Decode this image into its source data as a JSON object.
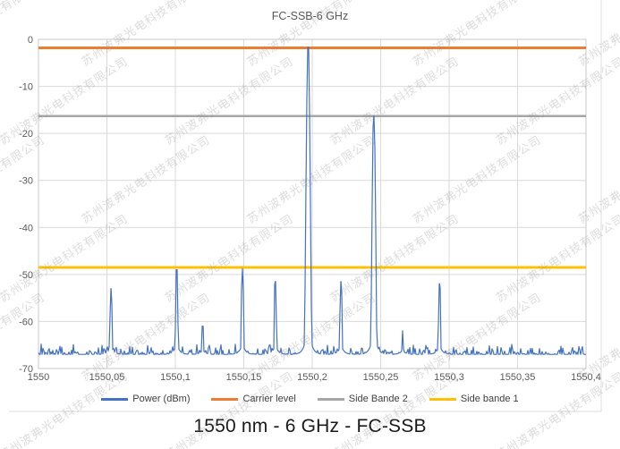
{
  "caption": "1550 nm - 6 GHz - FC-SSB",
  "watermark": {
    "text": "苏州波弗光电科技有限公司",
    "color": "#8f8f8f",
    "opacity": 0.3
  },
  "chart_data": {
    "type": "line",
    "title": "FC-SSB-6 GHz",
    "xlabel": "",
    "ylabel": "",
    "xlim": [
      1550,
      1550.4
    ],
    "ylim": [
      -70,
      0
    ],
    "x_ticks": [
      1550,
      1550.05,
      1550.1,
      1550.15,
      1550.2,
      1550.25,
      1550.3,
      1550.35,
      1550.4
    ],
    "x_tick_labels": [
      "1550",
      "1550,05",
      "1550,1",
      "1550,15",
      "1550,2",
      "1550,25",
      "1550,3",
      "1550,35",
      "1550,4"
    ],
    "y_ticks": [
      0,
      -10,
      -20,
      -30,
      -40,
      -50,
      -60,
      -70
    ],
    "grid": true,
    "legend_position": "bottom",
    "grid_color": "#D9D9D9",
    "series": [
      {
        "name": "Power (dBm)",
        "type": "spectrum",
        "color": "#4472C4",
        "noise_floor_dbm": -67,
        "noise_amplitude_db": 2.3,
        "noise_seed": 7,
        "peaks": [
          {
            "wavelength_nm": 1550.053,
            "power_dbm": -53
          },
          {
            "wavelength_nm": 1550.101,
            "power_dbm": -49
          },
          {
            "wavelength_nm": 1550.12,
            "power_dbm": -61
          },
          {
            "wavelength_nm": 1550.149,
            "power_dbm": -48.8
          },
          {
            "wavelength_nm": 1550.173,
            "power_dbm": -51.5
          },
          {
            "wavelength_nm": 1550.197,
            "power_dbm": -1.7
          },
          {
            "wavelength_nm": 1550.221,
            "power_dbm": -51.5
          },
          {
            "wavelength_nm": 1550.245,
            "power_dbm": -16.3
          },
          {
            "wavelength_nm": 1550.266,
            "power_dbm": -62
          },
          {
            "wavelength_nm": 1550.293,
            "power_dbm": -52
          }
        ]
      },
      {
        "name": "Carrier level",
        "type": "hline",
        "color": "#ED7D31",
        "value_dbm": -1.8,
        "width": 3
      },
      {
        "name": "Side Bande 2",
        "type": "hline",
        "color": "#A6A6A6",
        "value_dbm": -16.3,
        "width": 2.5
      },
      {
        "name": "Side bande 1",
        "type": "hline",
        "color": "#FFC000",
        "value_dbm": -48.5,
        "width": 3
      }
    ]
  }
}
